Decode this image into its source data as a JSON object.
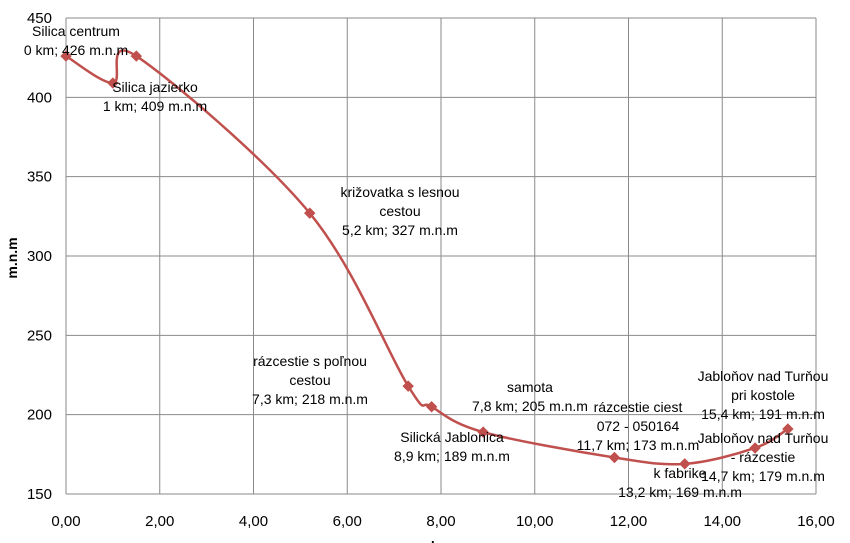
{
  "chart_data": {
    "type": "line",
    "xlabel": "km",
    "ylabel": "m.n.m",
    "xlim": [
      0,
      16
    ],
    "ylim": [
      150,
      450
    ],
    "x_ticks": [
      0,
      2,
      4,
      6,
      8,
      10,
      12,
      14,
      16
    ],
    "x_tick_labels": [
      "0,00",
      "2,00",
      "4,00",
      "6,00",
      "8,00",
      "10,00",
      "12,00",
      "14,00",
      "16,00"
    ],
    "y_ticks": [
      150,
      200,
      250,
      300,
      350,
      400,
      450
    ],
    "y_tick_labels": [
      "150",
      "200",
      "250",
      "300",
      "350",
      "400",
      "450"
    ],
    "grid": true,
    "series": [
      {
        "color": "#c0504d",
        "points": [
          {
            "x": 0,
            "y": 426,
            "label": [
              "Silica centrum",
              "0 km; 426 m.n.m"
            ]
          },
          {
            "x": 1.0,
            "y": 409,
            "label": [
              "Silica jazierko",
              "1 km; 409 m.n.m"
            ]
          },
          {
            "x": 1.5,
            "y": 426,
            "label": []
          },
          {
            "x": 5.2,
            "y": 327,
            "label": [
              "križovatka s lesnou",
              "cestou",
              "5,2 km; 327 m.n.m"
            ]
          },
          {
            "x": 7.3,
            "y": 218,
            "label": [
              "rázcestie s poľnou",
              "cestou",
              "7,3 km; 218 m.n.m"
            ]
          },
          {
            "x": 7.8,
            "y": 205,
            "label": [
              "samota",
              "7,8 km; 205 m.n.m"
            ]
          },
          {
            "x": 8.9,
            "y": 189,
            "label": [
              "Silická Jablonica",
              "8,9 km; 189 m.n.m"
            ]
          },
          {
            "x": 11.7,
            "y": 173,
            "label": [
              "rázcestie ciest",
              "072 - 050164",
              "11,7 km; 173 m.n.m"
            ]
          },
          {
            "x": 13.2,
            "y": 169,
            "label": [
              "k fabrike",
              "13,2 km; 169 m.n.m"
            ]
          },
          {
            "x": 14.7,
            "y": 179,
            "label": [
              "Jabloňov nad Turňou",
              "- rázcestie",
              "14,7 km; 179 m.n.m"
            ]
          },
          {
            "x": 15.4,
            "y": 191,
            "label": [
              "Jabloňov nad Turňou",
              "pri kostole",
              "15,4 km; 191 m.n.m"
            ]
          }
        ]
      }
    ]
  }
}
